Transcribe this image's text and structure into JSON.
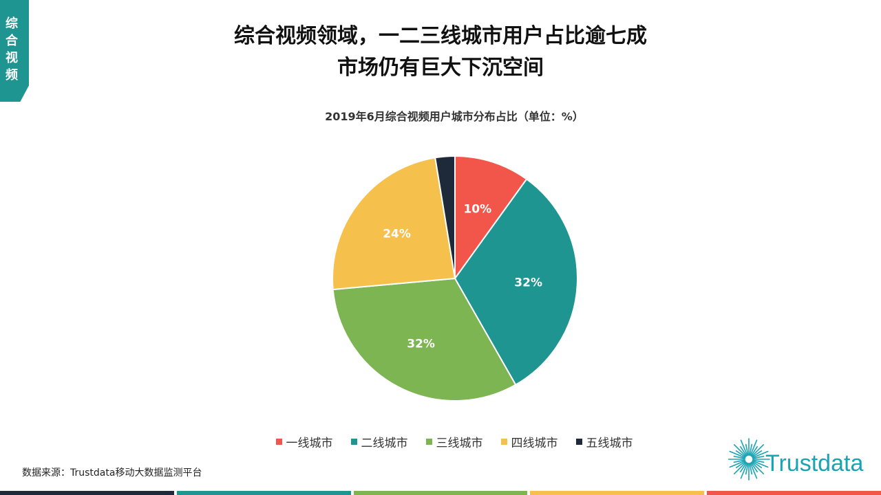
{
  "side_tab": {
    "label": "综合视频"
  },
  "title": {
    "line1": "综合视频领域，一二三线城市用户占比逾七成",
    "line2": "市场仍有巨大下沉空间"
  },
  "chart_data": {
    "type": "pie",
    "title": "2019年6月综合视频用户城市分布占比（单位：%）",
    "slices": [
      {
        "label": "一线城市",
        "value": 10,
        "display": "10%",
        "color": "#f2564a"
      },
      {
        "label": "二线城市",
        "value": 32,
        "display": "32%",
        "color": "#1e9590"
      },
      {
        "label": "三线城市",
        "value": 32,
        "display": "32%",
        "color": "#7cb552"
      },
      {
        "label": "四线城市",
        "value": 24,
        "display": "24%",
        "color": "#f6c04c"
      },
      {
        "label": "五线城市",
        "value": 2.6,
        "display": "",
        "color": "#1e2a3a"
      }
    ]
  },
  "source": "数据来源：Trustdata移动大数据监测平台",
  "brand": {
    "name": "Trustdata",
    "color": "#1aa3b3"
  },
  "bottom_bar_colors": [
    "#1e2a3a",
    "#1e9590",
    "#7cb552",
    "#f6c04c",
    "#f2564a"
  ]
}
